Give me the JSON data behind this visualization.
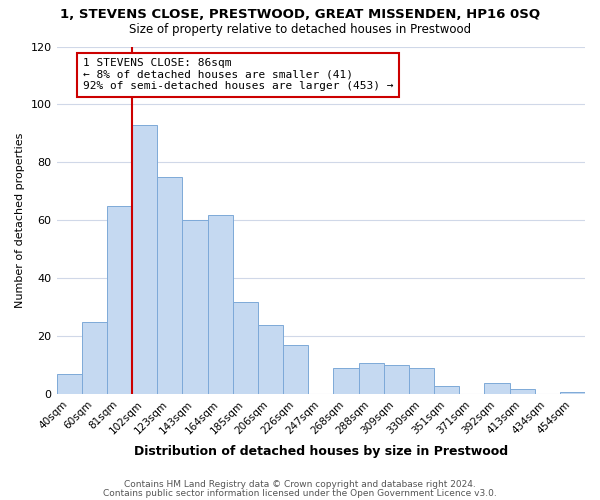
{
  "title": "1, STEVENS CLOSE, PRESTWOOD, GREAT MISSENDEN, HP16 0SQ",
  "subtitle": "Size of property relative to detached houses in Prestwood",
  "xlabel": "Distribution of detached houses by size in Prestwood",
  "ylabel": "Number of detached properties",
  "bar_labels": [
    "40sqm",
    "60sqm",
    "81sqm",
    "102sqm",
    "123sqm",
    "143sqm",
    "164sqm",
    "185sqm",
    "206sqm",
    "226sqm",
    "247sqm",
    "268sqm",
    "288sqm",
    "309sqm",
    "330sqm",
    "351sqm",
    "371sqm",
    "392sqm",
    "413sqm",
    "434sqm",
    "454sqm"
  ],
  "bar_values": [
    7,
    25,
    65,
    93,
    75,
    60,
    62,
    32,
    24,
    17,
    0,
    9,
    11,
    10,
    9,
    3,
    0,
    4,
    2,
    0,
    1
  ],
  "bar_color": "#c5d9f1",
  "bar_edge_color": "#7da9d8",
  "vline_x_index": 2,
  "vline_color": "#cc0000",
  "ylim": [
    0,
    120
  ],
  "yticks": [
    0,
    20,
    40,
    60,
    80,
    100,
    120
  ],
  "annotation_title": "1 STEVENS CLOSE: 86sqm",
  "annotation_line1": "← 8% of detached houses are smaller (41)",
  "annotation_line2": "92% of semi-detached houses are larger (453) →",
  "annotation_box_color": "#ffffff",
  "annotation_box_edge": "#cc0000",
  "footer1": "Contains HM Land Registry data © Crown copyright and database right 2024.",
  "footer2": "Contains public sector information licensed under the Open Government Licence v3.0.",
  "background_color": "#ffffff",
  "grid_color": "#d0d8e8"
}
